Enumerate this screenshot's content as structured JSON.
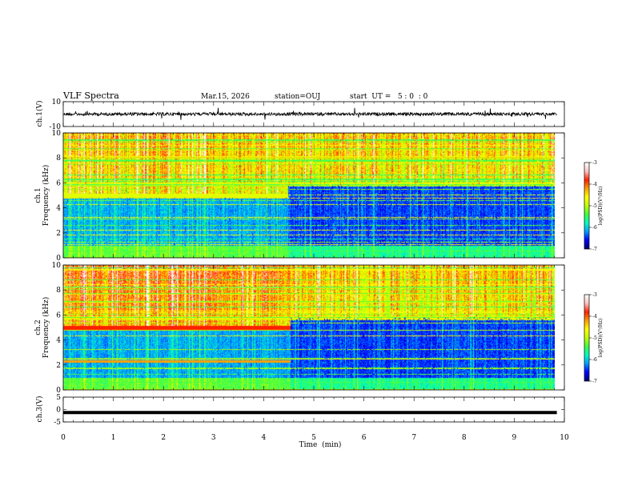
{
  "header": {
    "title": "VLF Spectra",
    "date": "Mar.15, 2026",
    "station": "station=OUJ",
    "start_time": "start  UT =   5 : 0  : 0"
  },
  "chart_data": [
    {
      "type": "line",
      "panel": "ch1-waveform",
      "ylabel": "ch.1(V)",
      "ylim": [
        -10,
        10
      ],
      "y_ticks": [
        "10",
        "-10"
      ],
      "xlim": [
        0,
        10
      ],
      "baseline": 0,
      "series": [
        {
          "color": "#000000"
        }
      ]
    },
    {
      "type": "heatmap",
      "panel": "ch1-spectrogram",
      "ylabel": "ch.1 Frequency (kHz)",
      "ylabel_line1": "ch.1",
      "ylabel_line2": "Frequency (kHz)",
      "ylim": [
        0,
        10
      ],
      "y_ticks": [
        "0",
        "2",
        "4",
        "6",
        "8",
        "10"
      ],
      "xlim": [
        0,
        10
      ],
      "data_end_min": 9.85,
      "transition_min": 4.5,
      "colorbar": {
        "label": "log(PSD)(V²/Hz)",
        "range": [
          -7,
          -3
        ],
        "ticks": [
          "-3",
          "-4",
          "-5",
          "-6",
          "-7"
        ]
      },
      "colormap": [
        "#000070",
        "#0000ff",
        "#00a0ff",
        "#00ffc0",
        "#40ff40",
        "#c0ff00",
        "#ffff00",
        "#ffa000",
        "#ff2000",
        "#ffc0c0",
        "#ffffff"
      ]
    },
    {
      "type": "heatmap",
      "panel": "ch2-spectrogram",
      "ylabel": "ch.2 Frequency (kHz)",
      "ylabel_line1": "ch.2",
      "ylabel_line2": "Frequency (kHz)",
      "ylim": [
        0,
        10
      ],
      "y_ticks": [
        "0",
        "2",
        "4",
        "6",
        "8",
        "10"
      ],
      "xlim": [
        0,
        10
      ],
      "data_end_min": 9.85,
      "transition_min": 4.55,
      "colorbar": {
        "label": "log(PSD)(V²/Hz)",
        "range": [
          -7,
          -3
        ],
        "ticks": [
          "-3",
          "-4",
          "-5",
          "-6",
          "-7"
        ]
      },
      "colormap": [
        "#000070",
        "#0000ff",
        "#00a0ff",
        "#00ffc0",
        "#40ff40",
        "#c0ff00",
        "#ffff00",
        "#ffa000",
        "#ff2000",
        "#ffc0c0",
        "#ffffff"
      ]
    },
    {
      "type": "line",
      "panel": "ch3-waveform",
      "ylabel": "ch.3(V)",
      "ylim": [
        -5,
        5
      ],
      "y_ticks": [
        "5",
        "0",
        "-5"
      ],
      "xlim": [
        0,
        10
      ],
      "xlabel": "Time  (min)",
      "x_ticks": [
        "0",
        "1",
        "2",
        "3",
        "4",
        "5",
        "6",
        "7",
        "8",
        "9",
        "10"
      ],
      "baseline": -1.2,
      "series": [
        {
          "color": "#000000"
        }
      ]
    }
  ]
}
